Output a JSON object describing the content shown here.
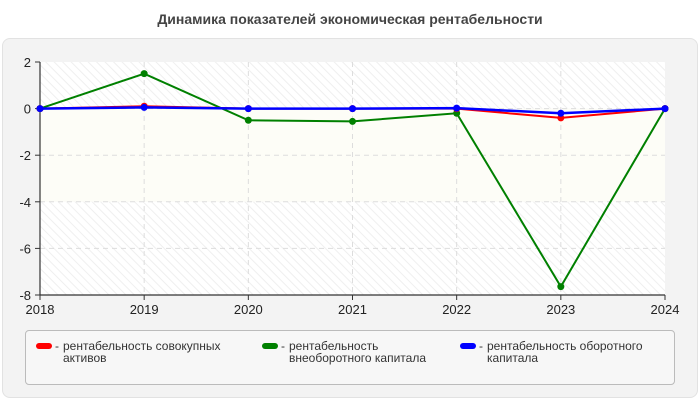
{
  "title": "Динамика показателей экономическая рентабельности",
  "chart_data": {
    "type": "line",
    "title": "Динамика показателей экономическая рентабельности",
    "xlabel": "",
    "ylabel": "",
    "categories": [
      "2018",
      "2019",
      "2020",
      "2021",
      "2022",
      "2023",
      "2024"
    ],
    "ylim": [
      -8,
      2
    ],
    "yticks": [
      "2",
      "0",
      "-2",
      "-4",
      "-6",
      "-8"
    ],
    "grid": true,
    "legend_position": "bottom",
    "series": [
      {
        "name": "рентабельность совокупных активов",
        "color": "#ff0000",
        "values": [
          0,
          0.1,
          0,
          0,
          0,
          -0.4,
          0
        ]
      },
      {
        "name": "рентабельность внеоборотного капитала",
        "color": "#008000",
        "values": [
          0,
          1.5,
          -0.5,
          -0.55,
          -0.2,
          -7.64,
          0
        ]
      },
      {
        "name": "рентабельность оборотного капитала",
        "color": "#0000ff",
        "values": [
          0,
          0.05,
          0,
          0,
          0.02,
          -0.2,
          0
        ]
      }
    ]
  },
  "legend": {
    "dash": "-",
    "items": [
      {
        "label": "рентабельность совокупных активов",
        "color": "#ff0000"
      },
      {
        "label": "рентабельность внеоборотного капитала",
        "color": "#008000"
      },
      {
        "label": "рентабельность оборотного капитала",
        "color": "#0000ff"
      }
    ]
  }
}
